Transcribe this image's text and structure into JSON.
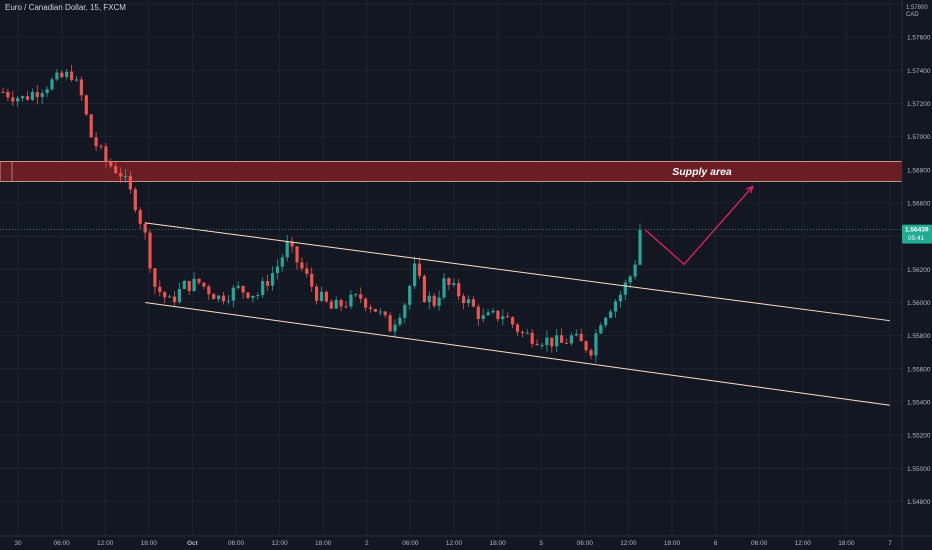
{
  "header": {
    "symbol_title": "Euro / Canadian Dollar, 15, FXCM"
  },
  "price_axis": {
    "currency": "CAD",
    "currency_top": "1.57800"
  },
  "chart_data": {
    "type": "candlestick",
    "title": "Euro / Canadian Dollar, 15, FXCM",
    "y_axis": {
      "range": [
        1.547,
        1.578
      ],
      "ticks": [
        "1.57800",
        "1.57600",
        "1.57400",
        "1.57200",
        "1.57000",
        "1.56800",
        "1.56600",
        "1.56400",
        "1.56200",
        "1.56000",
        "1.55800",
        "1.55600",
        "1.55400",
        "1.55200",
        "1.55000",
        "1.54800"
      ]
    },
    "x_axis": {
      "tick_labels": [
        "30",
        "06:00",
        "12:00",
        "18:00",
        "Oct",
        "06:00",
        "12:00",
        "18:00",
        "2",
        "06:00",
        "12:00",
        "18:00",
        "5",
        "06:00",
        "12:00",
        "18:00",
        "6",
        "06:00",
        "12:00",
        "18:00",
        "7"
      ]
    },
    "last_price": "1.56439",
    "countdown": "05:41",
    "zones": [
      {
        "label": "Supply area",
        "from": 1.5673,
        "to": 1.5685,
        "color": "#7a1f22"
      }
    ],
    "key_points": [
      {
        "t": 0,
        "price": 1.5727
      },
      {
        "t": 4,
        "price": 1.5723
      },
      {
        "t": 10,
        "price": 1.5733
      },
      {
        "t": 14,
        "price": 1.5738
      },
      {
        "t": 16,
        "price": 1.5724
      },
      {
        "t": 18,
        "price": 1.57
      },
      {
        "t": 21,
        "price": 1.5685
      },
      {
        "t": 24,
        "price": 1.5678
      },
      {
        "t": 27,
        "price": 1.566
      },
      {
        "t": 29,
        "price": 1.564
      },
      {
        "t": 31,
        "price": 1.561
      },
      {
        "t": 34,
        "price": 1.56
      },
      {
        "t": 37,
        "price": 1.561
      },
      {
        "t": 40,
        "price": 1.5612
      },
      {
        "t": 44,
        "price": 1.5603
      },
      {
        "t": 48,
        "price": 1.5608
      },
      {
        "t": 52,
        "price": 1.5605
      },
      {
        "t": 56,
        "price": 1.5622
      },
      {
        "t": 58,
        "price": 1.5634
      },
      {
        "t": 61,
        "price": 1.562
      },
      {
        "t": 64,
        "price": 1.5605
      },
      {
        "t": 67,
        "price": 1.5596
      },
      {
        "t": 70,
        "price": 1.56
      },
      {
        "t": 73,
        "price": 1.5603
      },
      {
        "t": 76,
        "price": 1.5596
      },
      {
        "t": 79,
        "price": 1.5585
      },
      {
        "t": 82,
        "price": 1.56
      },
      {
        "t": 84,
        "price": 1.562
      },
      {
        "t": 86,
        "price": 1.5604
      },
      {
        "t": 88,
        "price": 1.56
      },
      {
        "t": 90,
        "price": 1.5612
      },
      {
        "t": 94,
        "price": 1.5603
      },
      {
        "t": 98,
        "price": 1.559
      },
      {
        "t": 102,
        "price": 1.5593
      },
      {
        "t": 106,
        "price": 1.5581
      },
      {
        "t": 110,
        "price": 1.5578
      },
      {
        "t": 114,
        "price": 1.5575
      },
      {
        "t": 116,
        "price": 1.5579
      },
      {
        "t": 118,
        "price": 1.5575
      },
      {
        "t": 120,
        "price": 1.5572
      },
      {
        "t": 122,
        "price": 1.559
      },
      {
        "t": 124,
        "price": 1.5598
      },
      {
        "t": 126,
        "price": 1.5605
      },
      {
        "t": 128,
        "price": 1.5616
      },
      {
        "t": 129,
        "price": 1.5625
      },
      {
        "t": 130,
        "price": 1.5644
      }
    ],
    "channel": {
      "upper": [
        {
          "t": 29,
          "price": 1.5648
        },
        {
          "t": 181,
          "price": 1.5589
        }
      ],
      "lower": [
        {
          "t": 29,
          "price": 1.56
        },
        {
          "t": 181,
          "price": 1.5538
        }
      ]
    },
    "projection": [
      {
        "t": 131,
        "price": 1.5644
      },
      {
        "t": 139,
        "price": 1.5623
      },
      {
        "t": 153,
        "price": 1.567
      }
    ],
    "colors": {
      "up": "#26a69a",
      "down": "#ef5350",
      "projection": "#e91e63",
      "channel": "#ffe0c0",
      "last_price": "#22ab94"
    }
  }
}
